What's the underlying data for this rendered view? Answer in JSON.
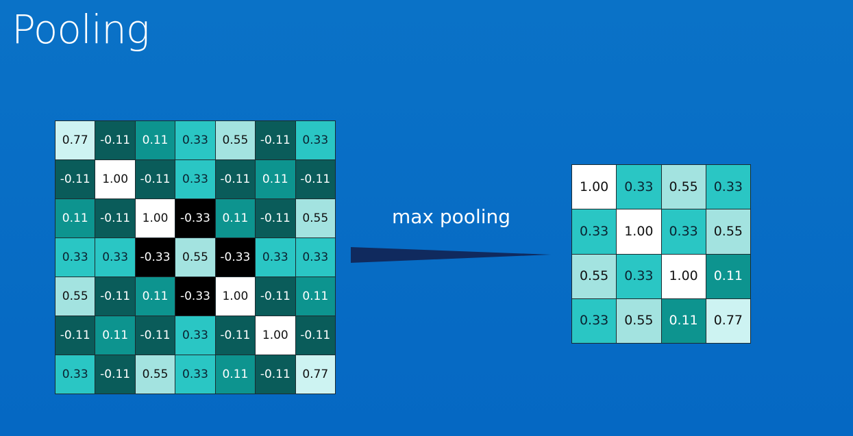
{
  "slide": {
    "title": "Pooling",
    "operation_label": "max pooling"
  },
  "colors": {
    "background_top": "#0a72c7",
    "background_bottom": "#0568c3",
    "grid_border": "#1c2a2f",
    "arrow": "#102a5e",
    "cell_white": "#ffffff",
    "cell_black": "#000000",
    "cell_teal_light": "#a3e3e0",
    "cell_teal_mid": "#2ac6c4",
    "cell_teal_dark": "#0d948f",
    "cell_teal_darkest": "#0a5c5a",
    "cell_lightest": "#cdf3f2"
  },
  "input_grid": {
    "rows": [
      [
        "0.77",
        "-0.11",
        "0.11",
        "0.33",
        "0.55",
        "-0.11",
        "0.33"
      ],
      [
        "-0.11",
        "1.00",
        "-0.11",
        "0.33",
        "-0.11",
        "0.11",
        "-0.11"
      ],
      [
        "0.11",
        "-0.11",
        "1.00",
        "-0.33",
        "0.11",
        "-0.11",
        "0.55"
      ],
      [
        "0.33",
        "0.33",
        "-0.33",
        "0.55",
        "-0.33",
        "0.33",
        "0.33"
      ],
      [
        "0.55",
        "-0.11",
        "0.11",
        "-0.33",
        "1.00",
        "-0.11",
        "0.11"
      ],
      [
        "-0.11",
        "0.11",
        "-0.11",
        "0.33",
        "-0.11",
        "1.00",
        "-0.11"
      ],
      [
        "0.33",
        "-0.11",
        "0.55",
        "0.33",
        "0.11",
        "-0.11",
        "0.77"
      ]
    ]
  },
  "output_grid": {
    "rows": [
      [
        "1.00",
        "0.33",
        "0.55",
        "0.33"
      ],
      [
        "0.33",
        "1.00",
        "0.33",
        "0.55"
      ],
      [
        "0.55",
        "0.33",
        "1.00",
        "0.11"
      ],
      [
        "0.33",
        "0.55",
        "0.11",
        "0.77"
      ]
    ]
  }
}
